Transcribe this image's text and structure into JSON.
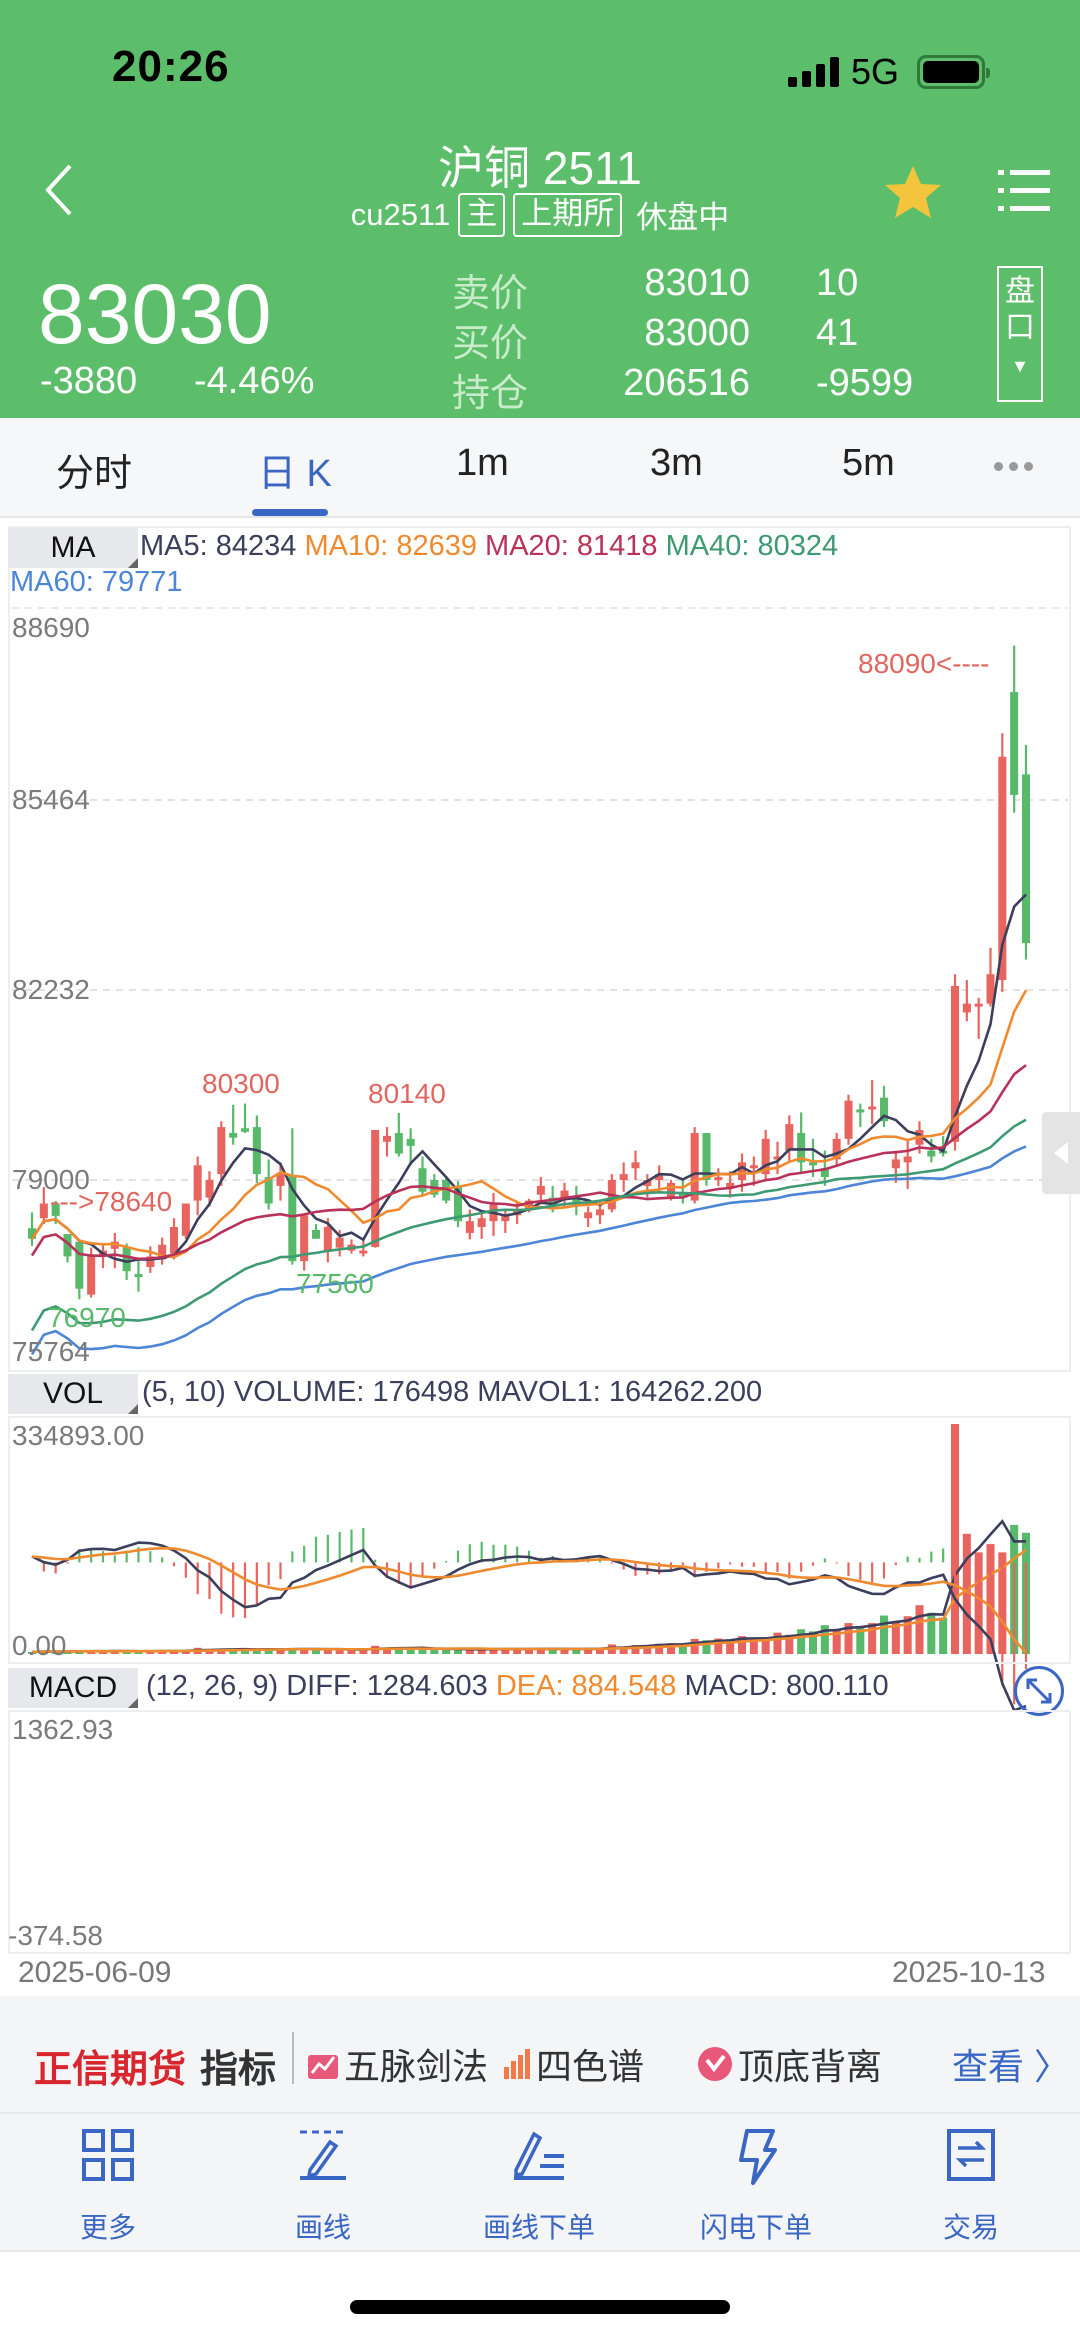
{
  "status_bar": {
    "time": "20:26",
    "network": "5G"
  },
  "header": {
    "title": "沪铜 2511",
    "code": "cu2511",
    "tags": [
      "主",
      "上期所"
    ],
    "session_status": "休盘中",
    "last_price": "83030",
    "change": "-3880",
    "change_pct": "-4.46%",
    "quotes": [
      {
        "label": "卖价",
        "value": "83010",
        "qty": "10"
      },
      {
        "label": "买价",
        "value": "83000",
        "qty": "41"
      },
      {
        "label": "持仓",
        "value": "206516",
        "qty": "-9599"
      }
    ],
    "pankou_label_1": "盘",
    "pankou_label_2": "口",
    "pankou_arrow": "▼",
    "bg_color": "#5cbd6a"
  },
  "tabs": [
    {
      "label": "分时",
      "active": false
    },
    {
      "label": "日 K",
      "active": true
    },
    {
      "label": "1m",
      "active": false
    },
    {
      "label": "3m",
      "active": false
    },
    {
      "label": "5m",
      "active": false
    }
  ],
  "ma_panel": {
    "selector": "MA",
    "legend": [
      {
        "text": "MA5: 84234",
        "color": "#3b3f5c"
      },
      {
        "text": "MA10: 82639",
        "color": "#ef8a2e"
      },
      {
        "text": "MA20: 81418",
        "color": "#b8325a"
      },
      {
        "text": "MA40: 80324",
        "color": "#3e9a72"
      },
      {
        "text": "MA60: 79771",
        "color": "#4d86d6"
      }
    ],
    "y_ticks": [
      "88690",
      "85464",
      "82232",
      "79000",
      "75764"
    ],
    "annotations": {
      "high_label": "88090<----",
      "left_mark": "--->78640",
      "peak1": "80300",
      "peak2": "80140",
      "low1": "76970",
      "low2": "77560"
    }
  },
  "vol_panel": {
    "selector": "VOL",
    "legend": "(5, 10) VOLUME: 176498 MAVOL1: 164262.200",
    "y_max": "334893.00",
    "y_min": "0.00"
  },
  "macd_panel": {
    "selector": "MACD",
    "legend_params": "(12, 26, 9) DIFF: 1284.603",
    "legend_dea": "DEA: 884.548",
    "legend_macd": "MACD: 800.110",
    "y_max": "1362.93",
    "y_min": "-374.58"
  },
  "date_range": {
    "start": "2025-06-09",
    "end": "2025-10-13"
  },
  "promo": {
    "brand": "正信期货",
    "indicator": "指标",
    "items": [
      "五脉剑法",
      "四色谱",
      "顶底背离"
    ],
    "see_more": "查看 〉"
  },
  "toolbar": [
    {
      "label": "更多",
      "icon": "grid-icon"
    },
    {
      "label": "画线",
      "icon": "draw-line-icon"
    },
    {
      "label": "画线下单",
      "icon": "draw-order-icon"
    },
    {
      "label": "闪电下单",
      "icon": "lightning-icon"
    },
    {
      "label": "交易",
      "icon": "trade-icon"
    }
  ],
  "colors": {
    "up": "#e8645e",
    "down": "#58b96a",
    "accent": "#3a66c4"
  },
  "chart_data": {
    "type": "candlestick",
    "title": "沪铜 2511 日K",
    "xlabel": "",
    "ylabel": "",
    "x_range": [
      "2025-06-09",
      "2025-10-13"
    ],
    "ylim": [
      75764,
      88690
    ],
    "y_ticks": [
      75764,
      79000,
      82232,
      85464,
      88690
    ],
    "grid": true,
    "candles_ohlc": [
      [
        78180,
        78450,
        77880,
        78000
      ],
      [
        78350,
        78880,
        78250,
        78600
      ],
      [
        78600,
        78640,
        78250,
        78390
      ],
      [
        78080,
        78080,
        77600,
        77700
      ],
      [
        77950,
        77950,
        76970,
        77150
      ],
      [
        77050,
        77850,
        77000,
        77700
      ],
      [
        77720,
        77900,
        77500,
        77800
      ],
      [
        77830,
        78100,
        77500,
        77950
      ],
      [
        77850,
        77920,
        77300,
        77450
      ],
      [
        77400,
        77650,
        77100,
        77350
      ],
      [
        77520,
        77870,
        77420,
        77700
      ],
      [
        77650,
        78020,
        77560,
        77900
      ],
      [
        77750,
        78350,
        77650,
        78200
      ],
      [
        78050,
        78500,
        78000,
        78600
      ],
      [
        78650,
        79400,
        78400,
        79250
      ],
      [
        78700,
        79150,
        78550,
        79000
      ],
      [
        79100,
        80000,
        78900,
        79900
      ],
      [
        79800,
        80280,
        79600,
        79720
      ],
      [
        79880,
        80300,
        79800,
        79820
      ],
      [
        79900,
        80100,
        78950,
        79100
      ],
      [
        79050,
        79350,
        78500,
        78600
      ],
      [
        78900,
        79300,
        78650,
        79100
      ],
      [
        79080,
        79880,
        77560,
        77620
      ],
      [
        77620,
        78400,
        77460,
        78400
      ],
      [
        78150,
        78250,
        78000,
        78000
      ],
      [
        77800,
        78350,
        77600,
        78200
      ],
      [
        77850,
        78150,
        77700,
        78020
      ],
      [
        77800,
        77990,
        77750,
        77900
      ],
      [
        77750,
        78000,
        77700,
        77800
      ],
      [
        77860,
        79850,
        77850,
        79850
      ],
      [
        79650,
        79900,
        79400,
        79750
      ],
      [
        79800,
        80140,
        79400,
        79450
      ],
      [
        79700,
        79880,
        79250,
        79580
      ],
      [
        79200,
        79400,
        78750,
        78800
      ],
      [
        79000,
        79100,
        78700,
        78750
      ],
      [
        79000,
        79050,
        78600,
        78650
      ],
      [
        78900,
        78980,
        78200,
        78300
      ],
      [
        78100,
        78500,
        77990,
        78300
      ],
      [
        78200,
        78450,
        78000,
        78350
      ],
      [
        78300,
        78780,
        78050,
        78600
      ],
      [
        78300,
        78500,
        78100,
        78420
      ],
      [
        78400,
        78640,
        78250,
        78500
      ],
      [
        78500,
        78680,
        78450,
        78650
      ],
      [
        78750,
        79050,
        78600,
        78900
      ],
      [
        78700,
        78900,
        78450,
        78500
      ],
      [
        78700,
        78950,
        78550,
        78820
      ],
      [
        78700,
        78900,
        78400,
        78600
      ],
      [
        78350,
        78550,
        78200,
        78450
      ],
      [
        78400,
        78650,
        78250,
        78500
      ],
      [
        78500,
        79100,
        78450,
        79000
      ],
      [
        79000,
        79300,
        78800,
        79100
      ],
      [
        79200,
        79500,
        79000,
        79300
      ],
      [
        78900,
        79100,
        78700,
        79000
      ],
      [
        79000,
        79250,
        78800,
        79100
      ],
      [
        78700,
        79000,
        78650,
        78950
      ],
      [
        78800,
        79000,
        78600,
        78700
      ],
      [
        78650,
        79900,
        78600,
        79800
      ],
      [
        79800,
        79800,
        78900,
        79000
      ],
      [
        79000,
        79200,
        78900,
        79050
      ],
      [
        78850,
        79150,
        78700,
        78950
      ],
      [
        79000,
        79450,
        78800,
        79300
      ],
      [
        79200,
        79400,
        78900,
        79250
      ],
      [
        79100,
        79850,
        79000,
        79700
      ],
      [
        79400,
        79650,
        79100,
        79400
      ],
      [
        79500,
        80100,
        79300,
        79950
      ],
      [
        79800,
        80150,
        79100,
        79300
      ],
      [
        79300,
        79700,
        79050,
        79250
      ],
      [
        79200,
        79500,
        78900,
        79050
      ],
      [
        79350,
        79800,
        79250,
        79700
      ],
      [
        79700,
        80450,
        79600,
        80350
      ],
      [
        80200,
        80300,
        79900,
        80150
      ],
      [
        80200,
        80700,
        79950,
        80250
      ],
      [
        80400,
        80600,
        79900,
        80000
      ],
      [
        79200,
        79500,
        78950,
        79350
      ],
      [
        79300,
        79700,
        78850,
        79400
      ],
      [
        79600,
        80000,
        79450,
        79850
      ],
      [
        79500,
        79700,
        79300,
        79400
      ],
      [
        79500,
        79750,
        79400,
        79450
      ],
      [
        79650,
        82500,
        79500,
        82300
      ],
      [
        81850,
        82400,
        81700,
        82000
      ],
      [
        81950,
        82100,
        81400,
        82000
      ],
      [
        82000,
        82950,
        81950,
        82500
      ],
      [
        82400,
        86600,
        82200,
        86200
      ],
      [
        87300,
        88090,
        85250,
        85550
      ],
      [
        85900,
        86400,
        82750,
        83030
      ]
    ],
    "ma_series": [
      {
        "name": "MA5",
        "color": "#3b3f5c",
        "last": 84234
      },
      {
        "name": "MA10",
        "color": "#ef8a2e",
        "last": 82639
      },
      {
        "name": "MA20",
        "color": "#b8325a",
        "last": 81418
      },
      {
        "name": "MA40",
        "color": "#3e9a72",
        "last": 80324
      },
      {
        "name": "MA60",
        "color": "#4d86d6",
        "last": 79771
      }
    ],
    "annotations": [
      {
        "text": "88090",
        "type": "high"
      },
      {
        "text": "78640",
        "type": "marker"
      },
      {
        "text": "80300",
        "type": "local_high"
      },
      {
        "text": "80140",
        "type": "local_high"
      },
      {
        "text": "76970",
        "type": "local_low"
      },
      {
        "text": "77560",
        "type": "local_low"
      }
    ],
    "volume": {
      "ylim": [
        0,
        334893
      ],
      "last": 176498,
      "mavol1": 164262.2,
      "values": [
        3000,
        4000,
        3500,
        3800,
        5000,
        4200,
        3800,
        4000,
        4500,
        3900,
        4300,
        4100,
        4800,
        5200,
        9000,
        6000,
        6500,
        6800,
        7000,
        7200,
        6500,
        6000,
        8000,
        7800,
        7100,
        6400,
        6000,
        6200,
        6300,
        12000,
        9000,
        8500,
        7800,
        7500,
        7000,
        6800,
        7200,
        6500,
        6900,
        7300,
        7800,
        7100,
        7000,
        7600,
        7400,
        7700,
        7000,
        7300,
        8100,
        14000,
        11000,
        13000,
        12500,
        15000,
        16000,
        14000,
        22000,
        20000,
        22500,
        21000,
        26000,
        24000,
        20000,
        31000,
        28000,
        36000,
        33000,
        42000,
        35000,
        45000,
        40000,
        45000,
        56000,
        48000,
        55000,
        71000,
        60000,
        53000,
        334893,
        175000,
        148000,
        160000,
        148000,
        188000,
        176498
      ]
    },
    "macd": {
      "ylim": [
        -374.58,
        1362.93
      ],
      "diff_last": 1284.603,
      "dea_last": 884.548,
      "macd_last": 800.11
    }
  }
}
